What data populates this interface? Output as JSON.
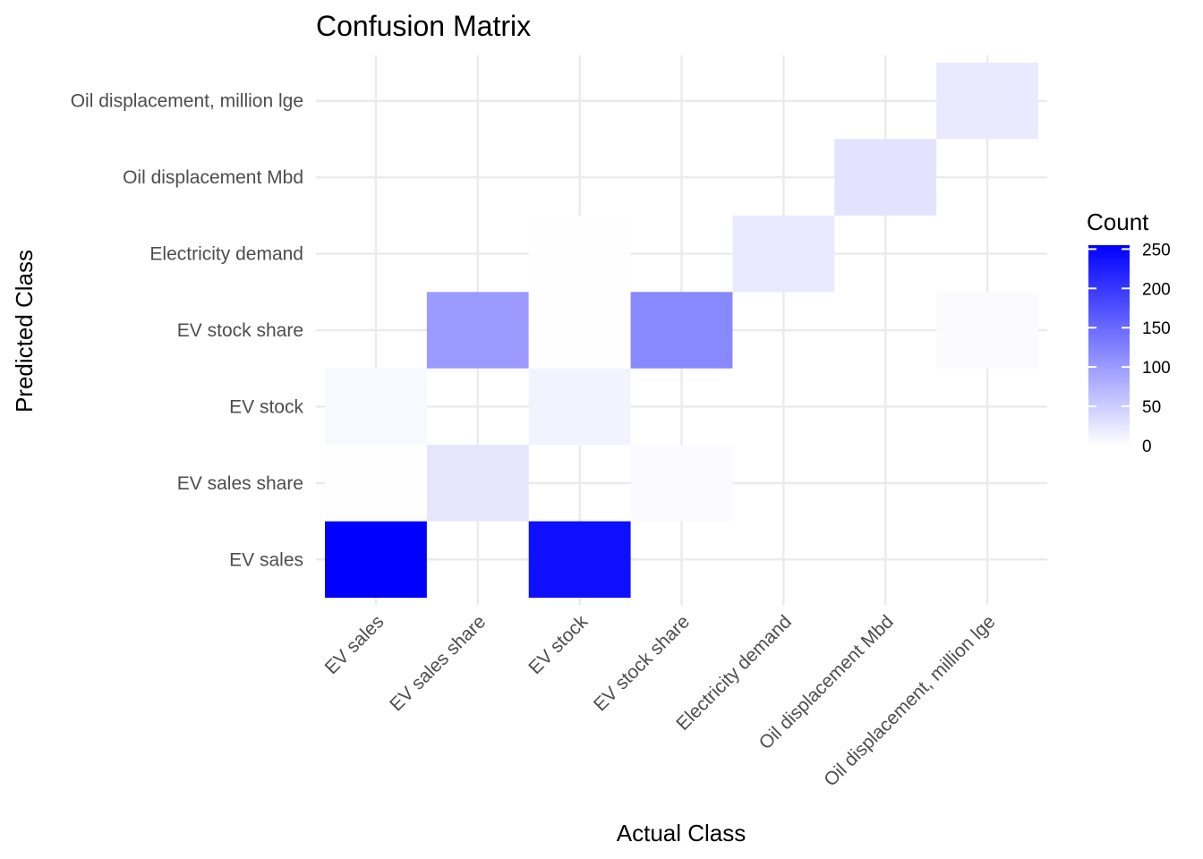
{
  "chart_data": {
    "type": "heatmap",
    "title": "Confusion Matrix",
    "xlabel": "Actual Class",
    "ylabel": "Predicted Class",
    "x_categories": [
      "EV sales",
      "EV sales share",
      "EV stock",
      "EV stock share",
      "Electricity demand",
      "Oil displacement Mbd",
      "Oil displacement, million lge"
    ],
    "y_categories": [
      "EV sales",
      "EV sales share",
      "EV stock",
      "EV stock share",
      "Electricity demand",
      "Oil displacement Mbd",
      "Oil displacement, million lge"
    ],
    "cells": [
      {
        "actual": "EV sales",
        "predicted": "EV sales",
        "count": 255
      },
      {
        "actual": "EV stock",
        "predicted": "EV sales",
        "count": 240
      },
      {
        "actual": "EV sales",
        "predicted": "EV sales share",
        "count": 1
      },
      {
        "actual": "EV sales share",
        "predicted": "EV sales share",
        "count": 25
      },
      {
        "actual": "EV stock share",
        "predicted": "EV sales share",
        "count": 5
      },
      {
        "actual": "EV sales",
        "predicted": "EV stock",
        "count": 7
      },
      {
        "actual": "EV stock",
        "predicted": "EV stock",
        "count": 12
      },
      {
        "actual": "EV sales share",
        "predicted": "EV stock share",
        "count": 100
      },
      {
        "actual": "EV stock",
        "predicted": "EV stock share",
        "count": 1
      },
      {
        "actual": "EV stock share",
        "predicted": "EV stock share",
        "count": 118
      },
      {
        "actual": "Oil displacement, million lge",
        "predicted": "EV stock share",
        "count": 4
      },
      {
        "actual": "EV stock",
        "predicted": "Electricity demand",
        "count": 1
      },
      {
        "actual": "Electricity demand",
        "predicted": "Electricity demand",
        "count": 22
      },
      {
        "actual": "Oil displacement Mbd",
        "predicted": "Oil displacement Mbd",
        "count": 28
      },
      {
        "actual": "Oil displacement, million lge",
        "predicted": "Oil displacement, million lge",
        "count": 21
      }
    ],
    "legend": {
      "title": "Count",
      "breaks": [
        0,
        50,
        100,
        150,
        200,
        250
      ],
      "range": [
        0,
        255
      ],
      "low_color": "#ffffff",
      "high_color": "#0000ff",
      "placement": "right"
    },
    "grid": true
  }
}
